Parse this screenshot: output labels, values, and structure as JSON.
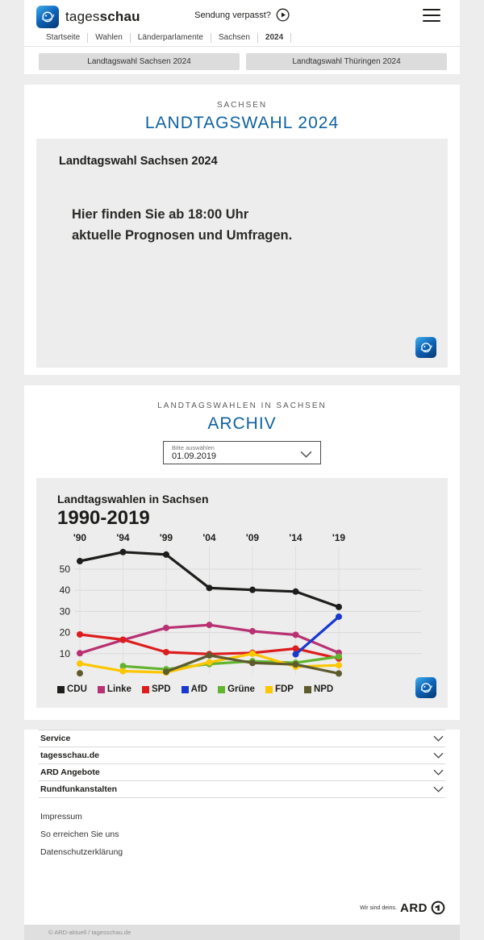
{
  "header": {
    "brand_regular": "tages",
    "brand_bold": "schau",
    "broadcast_link": "Sendung verpasst?",
    "breadcrumb": [
      "Startseite",
      "Wahlen",
      "Länderparlamente",
      "Sachsen",
      "2024"
    ],
    "nav_buttons": [
      "Landtagswahl Sachsen 2024",
      "Landtagswahl Thüringen 2024"
    ]
  },
  "live_section": {
    "kicker": "SACHSEN",
    "title": "LANDTAGSWAHL 2024",
    "card_title": "Landtagswahl Sachsen 2024",
    "message_line1": "Hier finden Sie ab 18:00 Uhr",
    "message_line2": "aktuelle Prognosen und Umfragen."
  },
  "archive_section": {
    "kicker": "LANDTAGSWAHLEN IN SACHSEN",
    "title": "ARCHIV",
    "select_label": "Bitte auswählen",
    "select_value": "01.09.2019"
  },
  "chart_data": {
    "type": "line",
    "title": "Landtagswahlen in Sachsen",
    "subtitle": "1990-2019",
    "categories": [
      "'90",
      "'94",
      "'99",
      "'04",
      "'09",
      "'14",
      "'19"
    ],
    "x_years": [
      1990,
      1994,
      1999,
      2004,
      2009,
      2014,
      2019
    ],
    "y_ticks": [
      10,
      20,
      30,
      40,
      50
    ],
    "ylim": [
      0,
      62
    ],
    "unit": "percent",
    "grid": true,
    "legend_position": "bottom",
    "series": [
      {
        "name": "CDU",
        "color": "#1d1d1b",
        "values": [
          53.8,
          58.1,
          56.9,
          41.1,
          40.2,
          39.4,
          32.1
        ]
      },
      {
        "name": "Linke",
        "color": "#b83173",
        "values": [
          10.2,
          16.5,
          22.2,
          23.6,
          20.6,
          18.9,
          10.4
        ]
      },
      {
        "name": "SPD",
        "color": "#dd1d1d",
        "values": [
          19.1,
          16.6,
          10.7,
          9.8,
          10.4,
          12.4,
          7.7
        ]
      },
      {
        "name": "AfD",
        "color": "#1838cf",
        "values": [
          null,
          null,
          null,
          null,
          null,
          9.7,
          27.5
        ]
      },
      {
        "name": "Grüne",
        "color": "#62b32e",
        "values": [
          null,
          4.1,
          2.6,
          5.1,
          6.4,
          5.7,
          8.6
        ]
      },
      {
        "name": "FDP",
        "color": "#fcc600",
        "values": [
          5.3,
          1.7,
          1.1,
          5.9,
          10.0,
          3.8,
          4.5
        ]
      },
      {
        "name": "NPD",
        "color": "#5d5b2d",
        "values": [
          0.7,
          null,
          1.4,
          9.2,
          5.6,
          4.9,
          0.6
        ]
      }
    ]
  },
  "footer": {
    "accordions": [
      "Service",
      "tagesschau.de",
      "ARD Angebote",
      "Rundfunkanstalten"
    ],
    "links": [
      "Impressum",
      "So erreichen Sie uns",
      "Datenschutzerklärung"
    ],
    "ard_claim": "Wir sind deins.",
    "ard_logo_text": "ARD",
    "copyright": "© ARD-aktuell / tagesschau.de"
  },
  "colors": {
    "accent_blue": "#0f62a1",
    "page_bg": "#ededed",
    "panel_bg": "#ededed",
    "button_bg": "#dcdcdc"
  }
}
